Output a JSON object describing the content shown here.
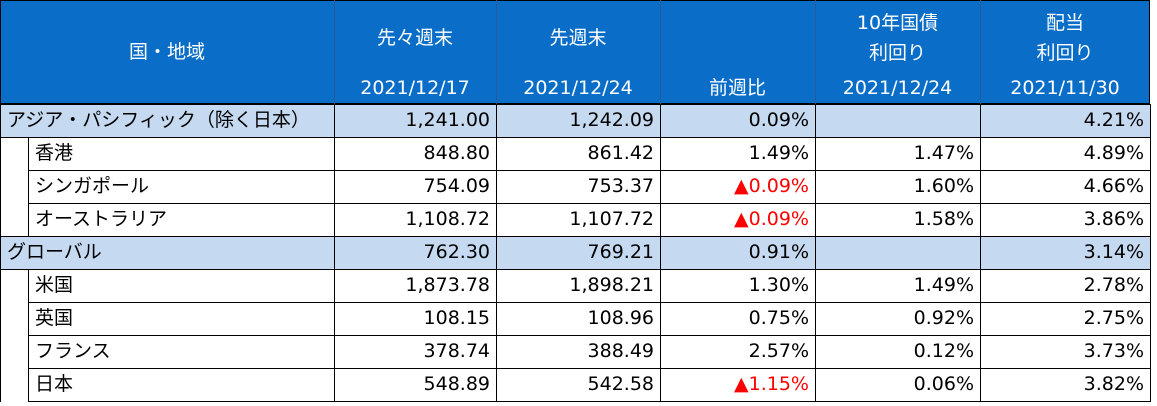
{
  "table": {
    "header": [
      {
        "lines": [
          "国・地域"
        ]
      },
      {
        "lines": [
          "先々週末"
        ],
        "sub": "2021/12/17"
      },
      {
        "lines": [
          "先週末"
        ],
        "sub": "2021/12/24"
      },
      {
        "sub": "前週比"
      },
      {
        "lines": [
          "10年国債",
          "利回り"
        ],
        "sub": "2021/12/24"
      },
      {
        "lines": [
          "配当",
          "利回り"
        ],
        "sub": "2021/11/30"
      }
    ],
    "header_color": "#0a6ec8",
    "group_color": "#c5d9f1",
    "rows": [
      {
        "type": "group",
        "label": "アジア・パシフィック（除く日本）",
        "cells": [
          {
            "text": "1,241.00"
          },
          {
            "text": "1,242.09"
          },
          {
            "text": "0.09%"
          },
          null,
          {
            "text": "4.21%"
          }
        ]
      },
      {
        "type": "item",
        "label": "香港",
        "cells": [
          {
            "text": "848.80"
          },
          {
            "text": "861.42"
          },
          {
            "text": "1.49%"
          },
          {
            "text": "1.47%"
          },
          {
            "text": "4.89%"
          }
        ]
      },
      {
        "type": "item",
        "label": "シンガポール",
        "cells": [
          {
            "text": "754.09"
          },
          {
            "text": "753.37"
          },
          {
            "text": "▲0.09%",
            "color": "#ff0000"
          },
          {
            "text": "1.60%"
          },
          {
            "text": "4.66%"
          }
        ]
      },
      {
        "type": "item",
        "label": "オーストラリア",
        "cells": [
          {
            "text": "1,108.72"
          },
          {
            "text": "1,107.72"
          },
          {
            "text": "▲0.09%",
            "color": "#ff0000"
          },
          {
            "text": "1.58%"
          },
          {
            "text": "3.86%"
          }
        ]
      },
      {
        "type": "group",
        "label": "グローバル",
        "cells": [
          {
            "text": "762.30"
          },
          {
            "text": "769.21"
          },
          {
            "text": "0.91%"
          },
          null,
          {
            "text": "3.14%"
          }
        ]
      },
      {
        "type": "item",
        "label": "米国",
        "cells": [
          {
            "text": "1,873.78"
          },
          {
            "text": "1,898.21"
          },
          {
            "text": "1.30%"
          },
          {
            "text": "1.49%"
          },
          {
            "text": "2.78%"
          }
        ]
      },
      {
        "type": "item",
        "label": "英国",
        "cells": [
          {
            "text": "108.15"
          },
          {
            "text": "108.96"
          },
          {
            "text": "0.75%"
          },
          {
            "text": "0.92%"
          },
          {
            "text": "2.75%"
          }
        ]
      },
      {
        "type": "item",
        "label": "フランス",
        "cells": [
          {
            "text": "378.74"
          },
          {
            "text": "388.49"
          },
          {
            "text": "2.57%"
          },
          {
            "text": "0.12%"
          },
          {
            "text": "3.73%"
          }
        ]
      },
      {
        "type": "item",
        "label": "日本",
        "cells": [
          {
            "text": "548.89"
          },
          {
            "text": "542.58"
          },
          {
            "text": "▲1.15%",
            "color": "#ff0000"
          },
          {
            "text": "0.06%"
          },
          {
            "text": "3.82%"
          }
        ]
      }
    ]
  }
}
